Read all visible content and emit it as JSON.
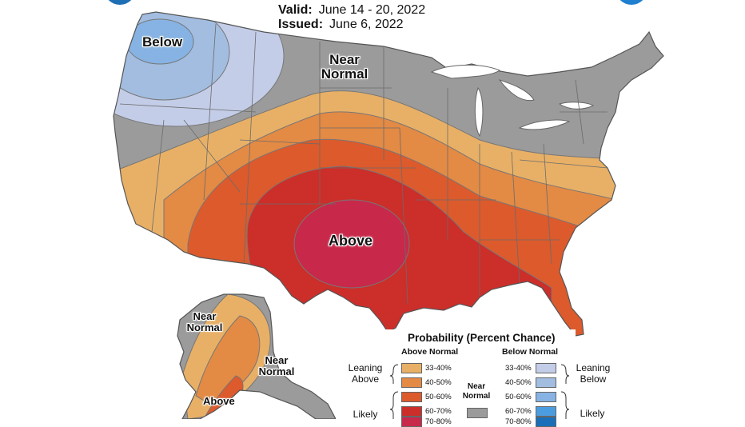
{
  "header": {
    "valid_label": "Valid:",
    "valid_value": "June 14 - 20, 2022",
    "issued_label": "Issued:",
    "issued_value": "June 6, 2022"
  },
  "map_labels": {
    "below": "Below",
    "near_normal_1": "Near",
    "near_normal_2": "Normal",
    "above": "Above",
    "alaska_near_1": "Near",
    "alaska_near_2": "Normal",
    "alaska_near_b1": "Near",
    "alaska_near_b2": "Normal",
    "alaska_above": "Above"
  },
  "legend": {
    "title": "Probability (Percent Chance)",
    "above_header": "Above Normal",
    "below_header": "Below Normal",
    "near_header_1": "Near",
    "near_header_2": "Normal",
    "leaning_above_1": "Leaning",
    "leaning_above_2": "Above",
    "leaning_below_1": "Leaning",
    "leaning_below_2": "Below",
    "likely_left": "Likely",
    "likely_right": "Likely",
    "above_ranges": [
      "33-40%",
      "40-50%",
      "50-60%",
      "60-70%",
      "70-80%"
    ],
    "below_ranges": [
      "33-40%",
      "40-50%",
      "50-60%",
      "60-70%",
      "70-80%"
    ]
  },
  "colors": {
    "above": [
      "#e8b066",
      "#e38a45",
      "#dc5a2c",
      "#cc2e2a",
      "#c8284a"
    ],
    "below": [
      "#c3cde8",
      "#a2bde0",
      "#86b3e3",
      "#4c9de0",
      "#1a6fb8"
    ],
    "near": "#9b9b9b",
    "ocean": "#ffffff"
  }
}
